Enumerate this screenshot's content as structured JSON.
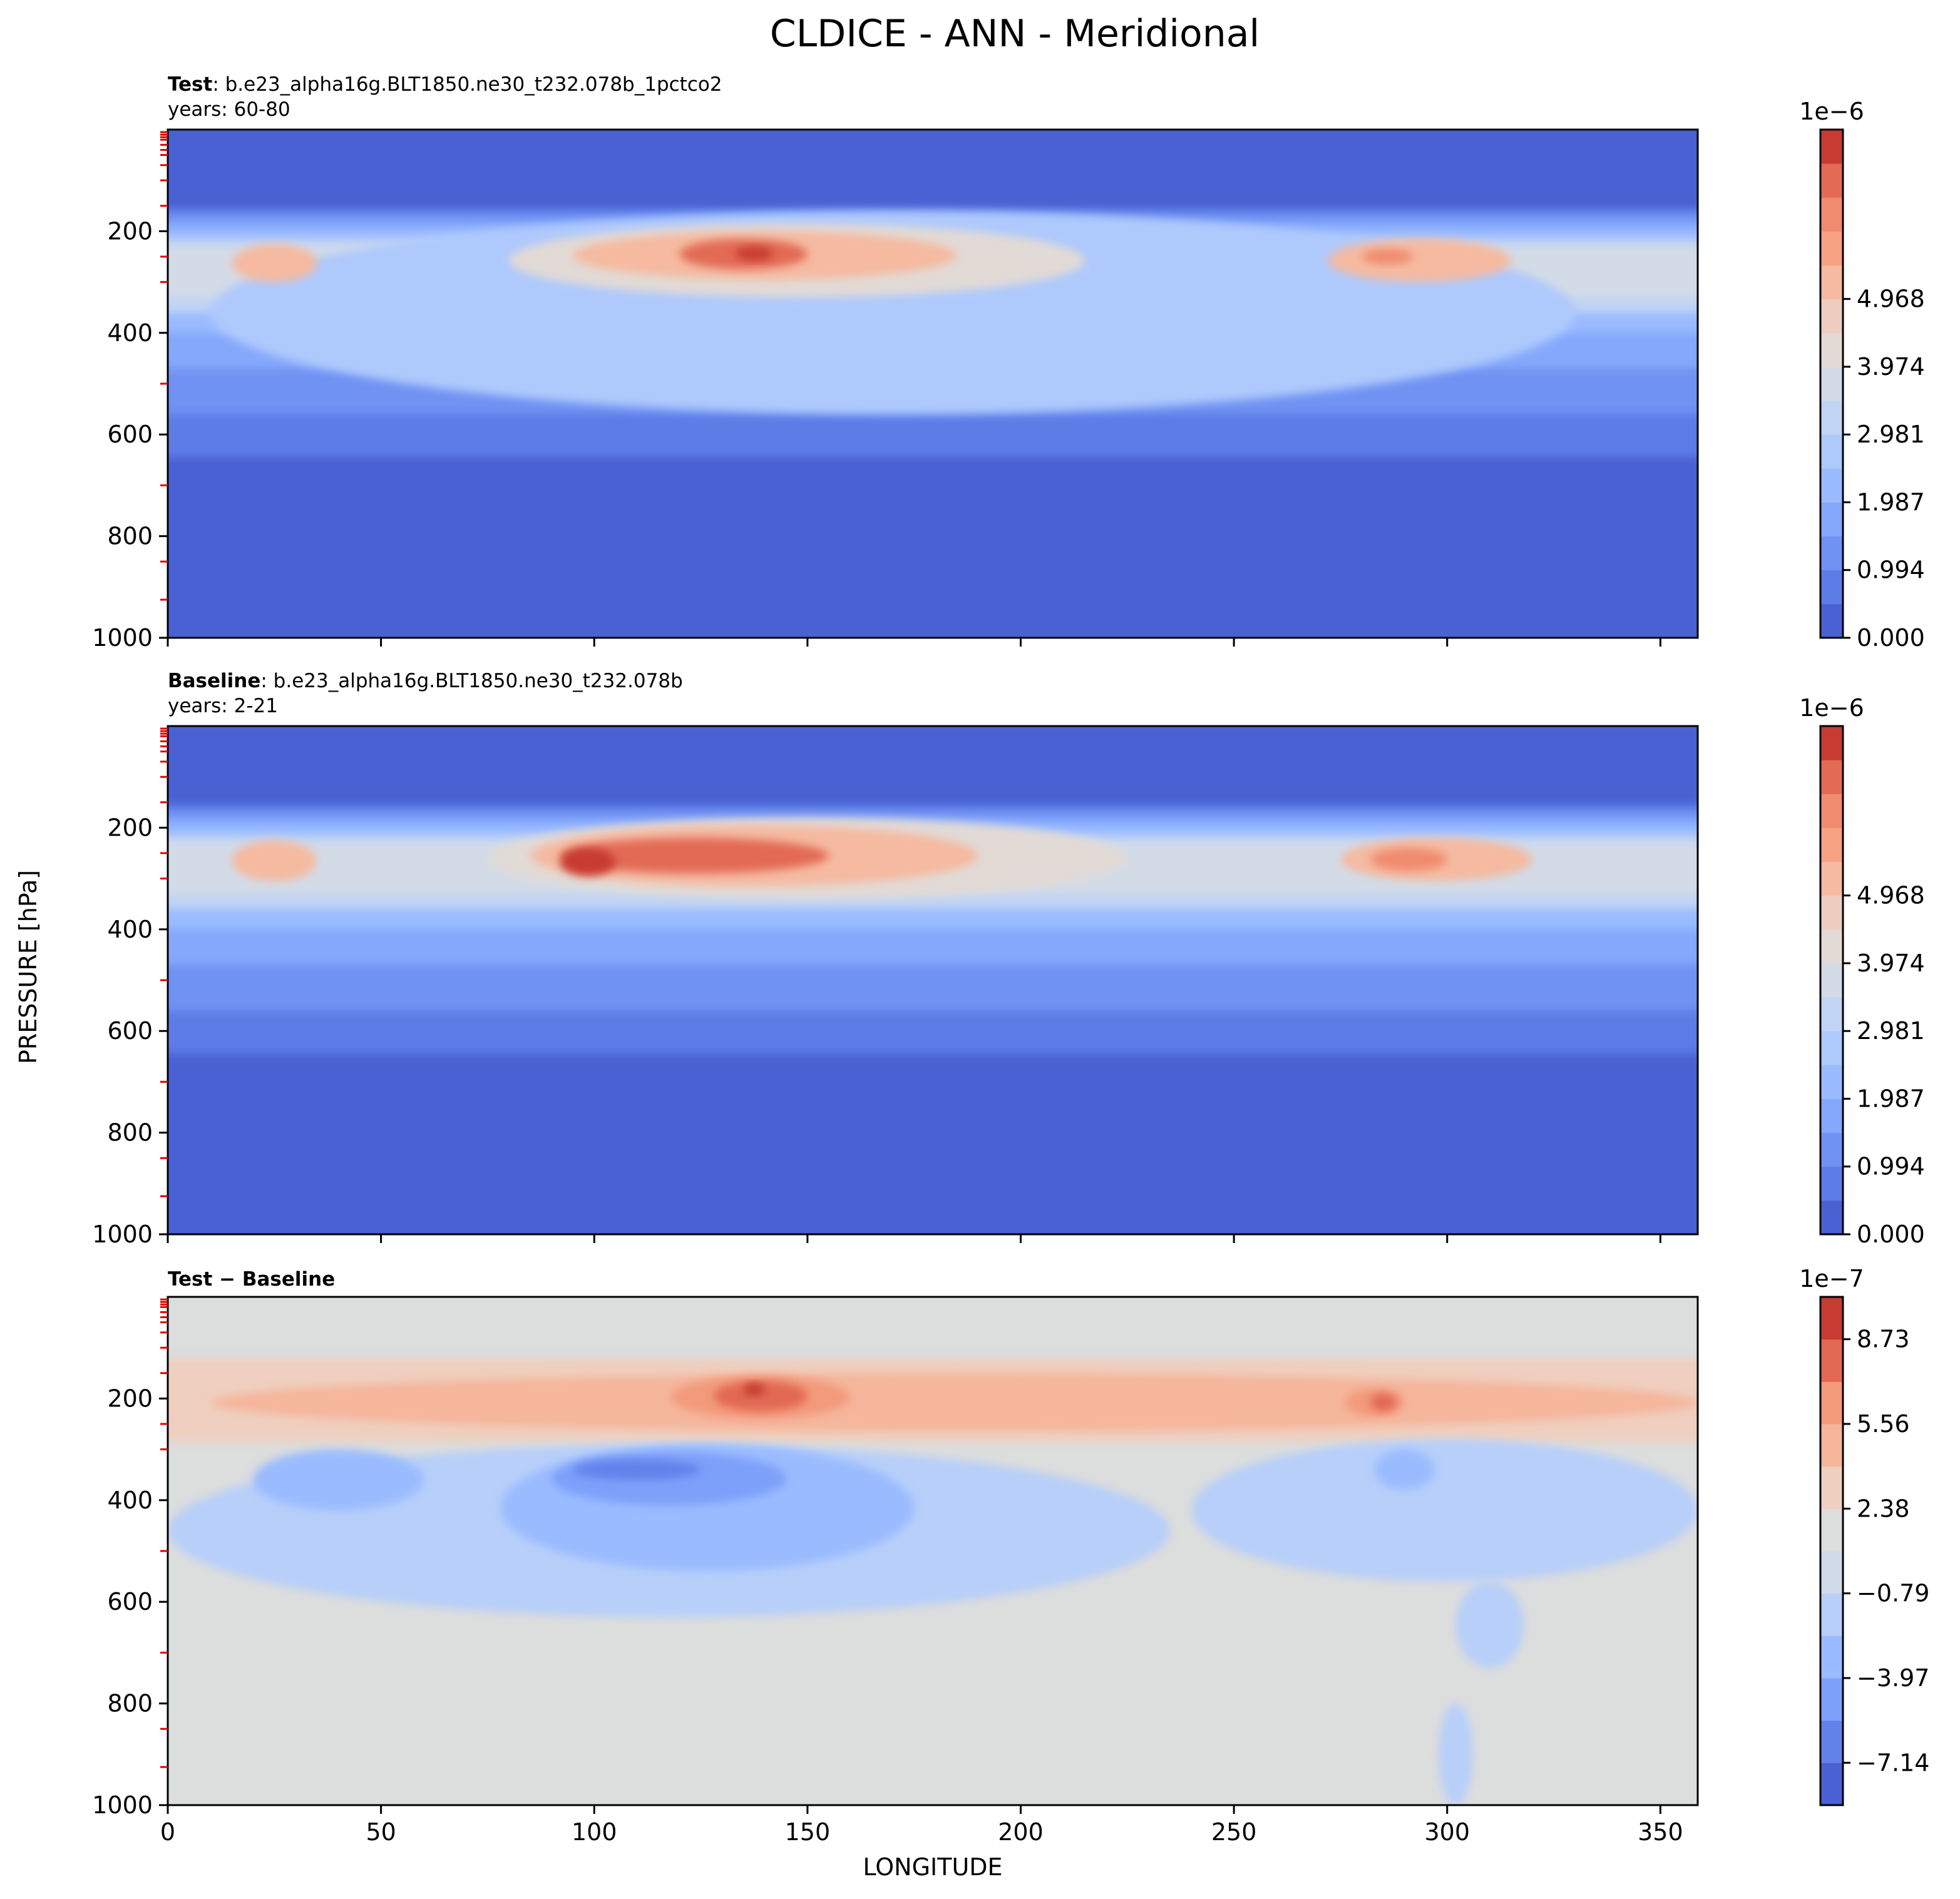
{
  "figure": {
    "title": "CLDICE - ANN - Meridional",
    "ylabel": "PRESSURE [hPa]",
    "xlabel": "LONGITUDE"
  },
  "chart_data": [
    {
      "type": "heatmap",
      "panel": "test",
      "label_bold": "Test",
      "label_text": ": b.e23_alpha16g.BLT1850.ne30_t232.078b_1pctco2",
      "years": "years: 60-80",
      "xlim": [
        0,
        358.75
      ],
      "ylim": [
        1000,
        0
      ],
      "x_ticks": [
        "0",
        "50",
        "100",
        "150",
        "200",
        "250",
        "300",
        "350"
      ],
      "x_tick_labels_shown": false,
      "y_ticks": [
        "200",
        "400",
        "600",
        "800",
        "1000"
      ],
      "colorbar": {
        "exponent": "1e−6",
        "ticks": [
          "0.000",
          "0.994",
          "1.987",
          "2.981",
          "3.974",
          "4.968"
        ],
        "levels": 15,
        "colors": [
          "#4961d2",
          "#5d7ce6",
          "#6f92f3",
          "#85a8fc",
          "#9abbff",
          "#aec9fc",
          "#c1d4f4",
          "#d3dbe7",
          "#e2dad5",
          "#eecdc0",
          "#f5baa0",
          "#f6a283",
          "#f08b6e",
          "#e36b54",
          "#c73b32"
        ]
      },
      "regions": [
        {
          "level": 5,
          "x": [
            10,
            330
          ],
          "p": [
            160,
            560
          ]
        },
        {
          "level": 8,
          "x": [
            80,
            215
          ],
          "p": [
            185,
            330
          ]
        },
        {
          "level": 10,
          "x": [
            95,
            185
          ],
          "p": [
            200,
            295
          ]
        },
        {
          "level": 13,
          "x": [
            120,
            150
          ],
          "p": [
            215,
            275
          ]
        },
        {
          "level": 14,
          "x": [
            133,
            142
          ],
          "p": [
            230,
            258
          ]
        },
        {
          "level": 10,
          "x": [
            15,
            35
          ],
          "p": [
            225,
            300
          ]
        },
        {
          "level": 10,
          "x": [
            272,
            315
          ],
          "p": [
            215,
            300
          ]
        },
        {
          "level": 12,
          "x": [
            280,
            292
          ],
          "p": [
            235,
            265
          ]
        }
      ]
    },
    {
      "type": "heatmap",
      "panel": "baseline",
      "label_bold": "Baseline",
      "label_text": ": b.e23_alpha16g.BLT1850.ne30_t232.078b",
      "years": "years: 2-21",
      "xlim": [
        0,
        358.75
      ],
      "ylim": [
        1000,
        0
      ],
      "x_ticks": [
        "0",
        "50",
        "100",
        "150",
        "200",
        "250",
        "300",
        "350"
      ],
      "x_tick_labels_shown": false,
      "y_ticks": [
        "200",
        "400",
        "600",
        "800",
        "1000"
      ],
      "colorbar": {
        "exponent": "1e−6",
        "ticks": [
          "0.000",
          "0.994",
          "1.987",
          "2.981",
          "3.974",
          "4.968"
        ],
        "levels": 15,
        "colors": [
          "#4961d2",
          "#5d7ce6",
          "#6f92f3",
          "#85a8fc",
          "#9abbff",
          "#aec9fc",
          "#c1d4f4",
          "#d3dbe7",
          "#e2dad5",
          "#eecdc0",
          "#f5baa0",
          "#f6a283",
          "#f08b6e",
          "#e36b54",
          "#c73b32"
        ]
      },
      "regions": [
        {
          "level": 8,
          "x": [
            75,
            225
          ],
          "p": [
            180,
            340
          ]
        },
        {
          "level": 10,
          "x": [
            85,
            190
          ],
          "p": [
            195,
            315
          ]
        },
        {
          "level": 13,
          "x": [
            92,
            155
          ],
          "p": [
            220,
            290
          ]
        },
        {
          "level": 14,
          "x": [
            92,
            105
          ],
          "p": [
            240,
            295
          ]
        },
        {
          "level": 10,
          "x": [
            15,
            35
          ],
          "p": [
            225,
            305
          ]
        },
        {
          "level": 10,
          "x": [
            275,
            320
          ],
          "p": [
            220,
            305
          ]
        },
        {
          "level": 12,
          "x": [
            282,
            300
          ],
          "p": [
            240,
            285
          ]
        }
      ]
    },
    {
      "type": "heatmap",
      "panel": "difference",
      "label_bold": "Test − Baseline",
      "xlim": [
        0,
        358.75
      ],
      "ylim": [
        1000,
        0
      ],
      "x_ticks": [
        "0",
        "50",
        "100",
        "150",
        "200",
        "250",
        "300",
        "350"
      ],
      "x_tick_labels_shown": true,
      "y_ticks": [
        "200",
        "400",
        "600",
        "800",
        "1000"
      ],
      "colorbar": {
        "exponent": "1e−7",
        "ticks": [
          "−7.14",
          "−3.97",
          "−0.79",
          "2.38",
          "5.56",
          "8.73"
        ],
        "levels": 12,
        "colors": [
          "#4961d2",
          "#6282ea",
          "#7da0fa",
          "#9abbff",
          "#b7cff9",
          "#d1dae9",
          "#dcdddd",
          "#efcfbf",
          "#f5b69b",
          "#f39a7b",
          "#e26952",
          "#c73b32"
        ]
      },
      "regions": [
        {
          "level": 8,
          "x": [
            10,
            358.75
          ],
          "p": [
            150,
            265
          ]
        },
        {
          "level": 9,
          "x": [
            118,
            160
          ],
          "p": [
            155,
            240
          ]
        },
        {
          "level": 10,
          "x": [
            128,
            150
          ],
          "p": [
            165,
            225
          ]
        },
        {
          "level": 11,
          "x": [
            135,
            140
          ],
          "p": [
            170,
            195
          ]
        },
        {
          "level": 9,
          "x": [
            276,
            290
          ],
          "p": [
            180,
            235
          ]
        },
        {
          "level": 10,
          "x": [
            282,
            288
          ],
          "p": [
            190,
            225
          ]
        },
        {
          "level": 4,
          "x": [
            0,
            235
          ],
          "p": [
            290,
            630
          ]
        },
        {
          "level": 4,
          "x": [
            240,
            358.75
          ],
          "p": [
            280,
            560
          ]
        },
        {
          "level": 4,
          "x": [
            302,
            318
          ],
          "p": [
            560,
            730
          ]
        },
        {
          "level": 3,
          "x": [
            20,
            60
          ],
          "p": [
            300,
            420
          ]
        },
        {
          "level": 3,
          "x": [
            78,
            175
          ],
          "p": [
            290,
            540
          ]
        },
        {
          "level": 2,
          "x": [
            90,
            145
          ],
          "p": [
            305,
            410
          ]
        },
        {
          "level": 1,
          "x": [
            95,
            125
          ],
          "p": [
            320,
            360
          ]
        },
        {
          "level": 3,
          "x": [
            283,
            297
          ],
          "p": [
            300,
            380
          ]
        },
        {
          "level": 4,
          "x": [
            298,
            306
          ],
          "p": [
            800,
            1000
          ]
        }
      ]
    }
  ]
}
